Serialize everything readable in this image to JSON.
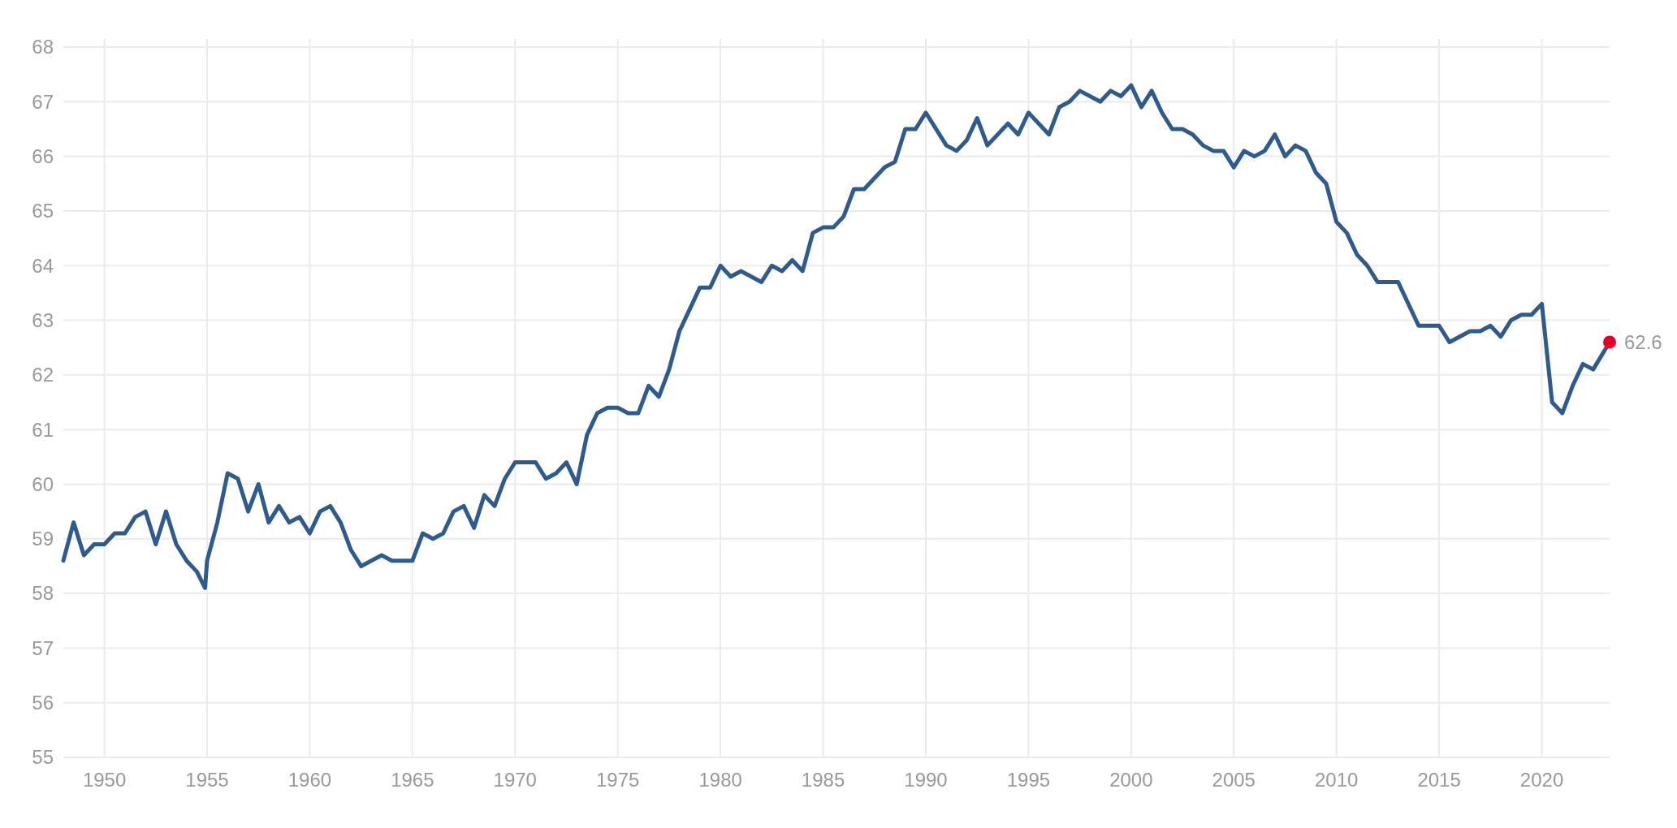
{
  "chart_data": {
    "type": "line",
    "xlim": [
      1948,
      2023.3
    ],
    "ylim": [
      55,
      68
    ],
    "xticks": [
      1950,
      1955,
      1960,
      1965,
      1970,
      1975,
      1980,
      1985,
      1990,
      1995,
      2000,
      2005,
      2010,
      2015,
      2020
    ],
    "yticks": [
      55,
      56,
      57,
      58,
      59,
      60,
      61,
      62,
      63,
      64,
      65,
      66,
      67,
      68
    ],
    "grid": true,
    "line_style": "solid",
    "series": [
      {
        "color": "#2e5a8e",
        "x": [
          1948,
          1948.5,
          1949,
          1949.5,
          1950,
          1950.5,
          1951,
          1951.5,
          1952,
          1952.5,
          1953,
          1953.5,
          1954,
          1954.5,
          1954.9,
          1955,
          1955.5,
          1956,
          1956.5,
          1957,
          1957.5,
          1958,
          1958.5,
          1959,
          1959.5,
          1960,
          1960.5,
          1961,
          1961.5,
          1962,
          1962.5,
          1963.5,
          1964,
          1965,
          1965.5,
          1966,
          1966.5,
          1967,
          1967.5,
          1968,
          1968.5,
          1969,
          1969.5,
          1970,
          1971,
          1971.5,
          1972,
          1972.5,
          1973,
          1973.5,
          1974,
          1974.5,
          1975,
          1975.5,
          1976,
          1976.5,
          1977,
          1977.5,
          1978,
          1978.5,
          1979,
          1979.5,
          1980,
          1980.5,
          1981,
          1982,
          1982.5,
          1983,
          1983.5,
          1984,
          1984.5,
          1985,
          1985.5,
          1986,
          1986.5,
          1987,
          1988,
          1988.5,
          1989,
          1989.5,
          1990,
          1991,
          1991.5,
          1992,
          1992.5,
          1993,
          1994,
          1994.5,
          1995,
          1996,
          1996.5,
          1997,
          1997.5,
          1998.5,
          1999,
          1999.5,
          2000,
          2000.5,
          2001,
          2001.5,
          2002,
          2002.5,
          2003,
          2003.5,
          2004,
          2004.5,
          2005,
          2005.5,
          2006,
          2006.5,
          2007,
          2007.5,
          2008,
          2008.5,
          2009,
          2009.5,
          2010,
          2010.5,
          2011,
          2011.5,
          2012,
          2013,
          2014,
          2015,
          2015.5,
          2016.5,
          2017,
          2017.5,
          2018,
          2018.5,
          2019,
          2019.5,
          2020,
          2020.5,
          2021,
          2021.5,
          2022,
          2022.5,
          2023.3
        ],
        "values": [
          58.6,
          59.3,
          58.7,
          58.9,
          58.9,
          59.1,
          59.1,
          59.4,
          59.5,
          58.9,
          59.5,
          58.9,
          58.6,
          58.4,
          58.1,
          58.6,
          59.3,
          60.2,
          60.1,
          59.5,
          60.0,
          59.3,
          59.6,
          59.3,
          59.4,
          59.1,
          59.5,
          59.6,
          59.3,
          58.8,
          58.5,
          58.7,
          58.6,
          58.6,
          59.1,
          59.0,
          59.1,
          59.5,
          59.6,
          59.2,
          59.8,
          59.6,
          60.1,
          60.4,
          60.4,
          60.1,
          60.2,
          60.4,
          60.0,
          60.9,
          61.3,
          61.4,
          61.4,
          61.3,
          61.3,
          61.8,
          61.6,
          62.1,
          62.8,
          63.2,
          63.6,
          63.6,
          64.0,
          63.8,
          63.9,
          63.7,
          64.0,
          63.9,
          64.1,
          63.9,
          64.6,
          64.7,
          64.7,
          64.9,
          65.4,
          65.4,
          65.8,
          65.9,
          66.5,
          66.5,
          66.8,
          66.2,
          66.1,
          66.3,
          66.7,
          66.2,
          66.6,
          66.4,
          66.8,
          66.4,
          66.9,
          67.0,
          67.2,
          67.0,
          67.2,
          67.1,
          67.3,
          66.9,
          67.2,
          66.8,
          66.5,
          66.5,
          66.4,
          66.2,
          66.1,
          66.1,
          65.8,
          66.1,
          66.0,
          66.1,
          66.4,
          66.0,
          66.2,
          66.1,
          65.7,
          65.5,
          64.8,
          64.6,
          64.2,
          64.0,
          63.7,
          63.7,
          62.9,
          62.9,
          62.6,
          62.8,
          62.8,
          62.9,
          62.7,
          63.0,
          63.1,
          63.1,
          63.3,
          61.5,
          61.3,
          61.8,
          62.2,
          62.1,
          62.6
        ]
      },
      {
        "type": "scatter",
        "color": "#e4002b",
        "x": [
          2023.3
        ],
        "values": [
          62.6
        ],
        "value_labels": [
          "62.6"
        ]
      }
    ]
  }
}
